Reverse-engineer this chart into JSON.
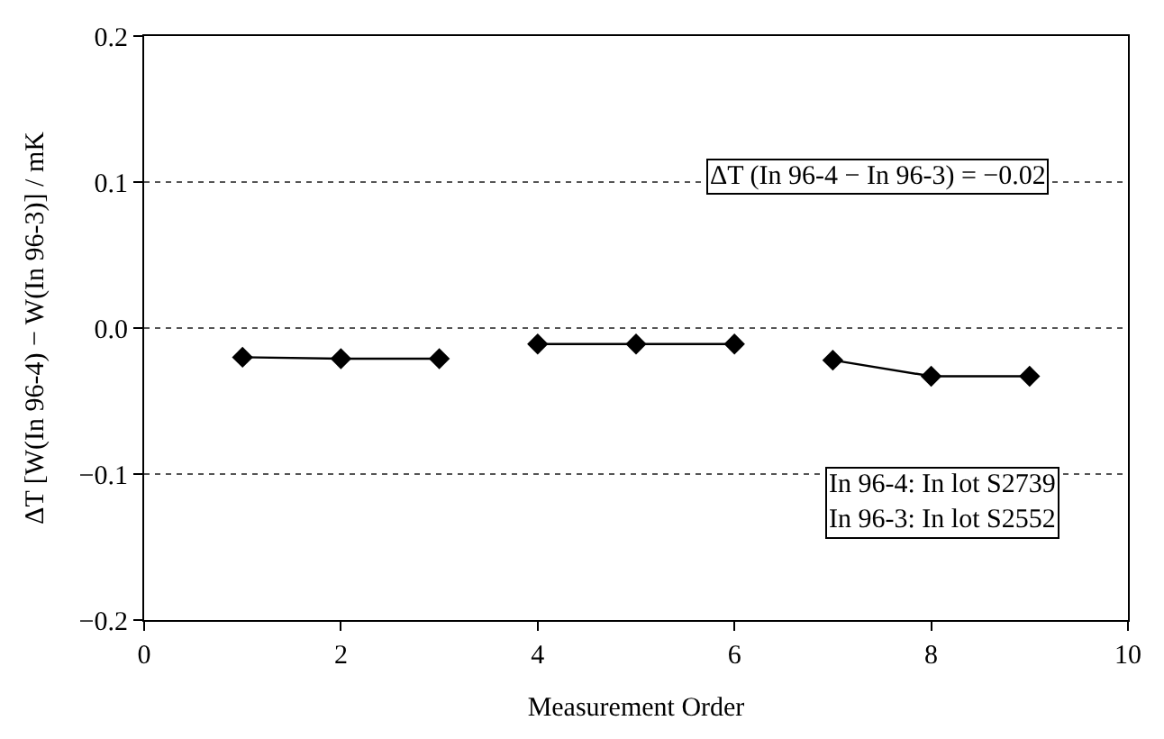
{
  "chart_data": {
    "type": "line",
    "xlabel": "Measurement Order",
    "ylabel": "ΔT [W(In 96-4) − W(In 96-3)] / mK",
    "series": [
      {
        "color": "#000000",
        "x": [
          1,
          2,
          3
        ],
        "values": [
          -0.02,
          -0.021,
          -0.021
        ]
      },
      {
        "color": "#000000",
        "x": [
          4,
          5,
          6
        ],
        "values": [
          -0.011,
          -0.011,
          -0.011
        ]
      },
      {
        "color": "#000000",
        "x": [
          7,
          8,
          9
        ],
        "values": [
          -0.022,
          -0.033,
          -0.033
        ]
      }
    ],
    "xlim": [
      0,
      10
    ],
    "xticks": [
      0,
      2,
      4,
      6,
      8,
      10
    ],
    "ylim": [
      -0.2,
      0.2
    ],
    "yticks": [
      {
        "value": -0.2,
        "label": "−0.2"
      },
      {
        "value": -0.1,
        "label": "−0.1"
      },
      {
        "value": 0,
        "label": "0.0"
      },
      0.1,
      0.2
    ],
    "grid": "y",
    "marker": "diamond",
    "line_style": "solid",
    "annotations": [
      "ΔT (In 96-4 − In 96-3) = −0.02",
      "In 96-4: In lot S2739\nIn 96-3: In lot S2552"
    ]
  }
}
